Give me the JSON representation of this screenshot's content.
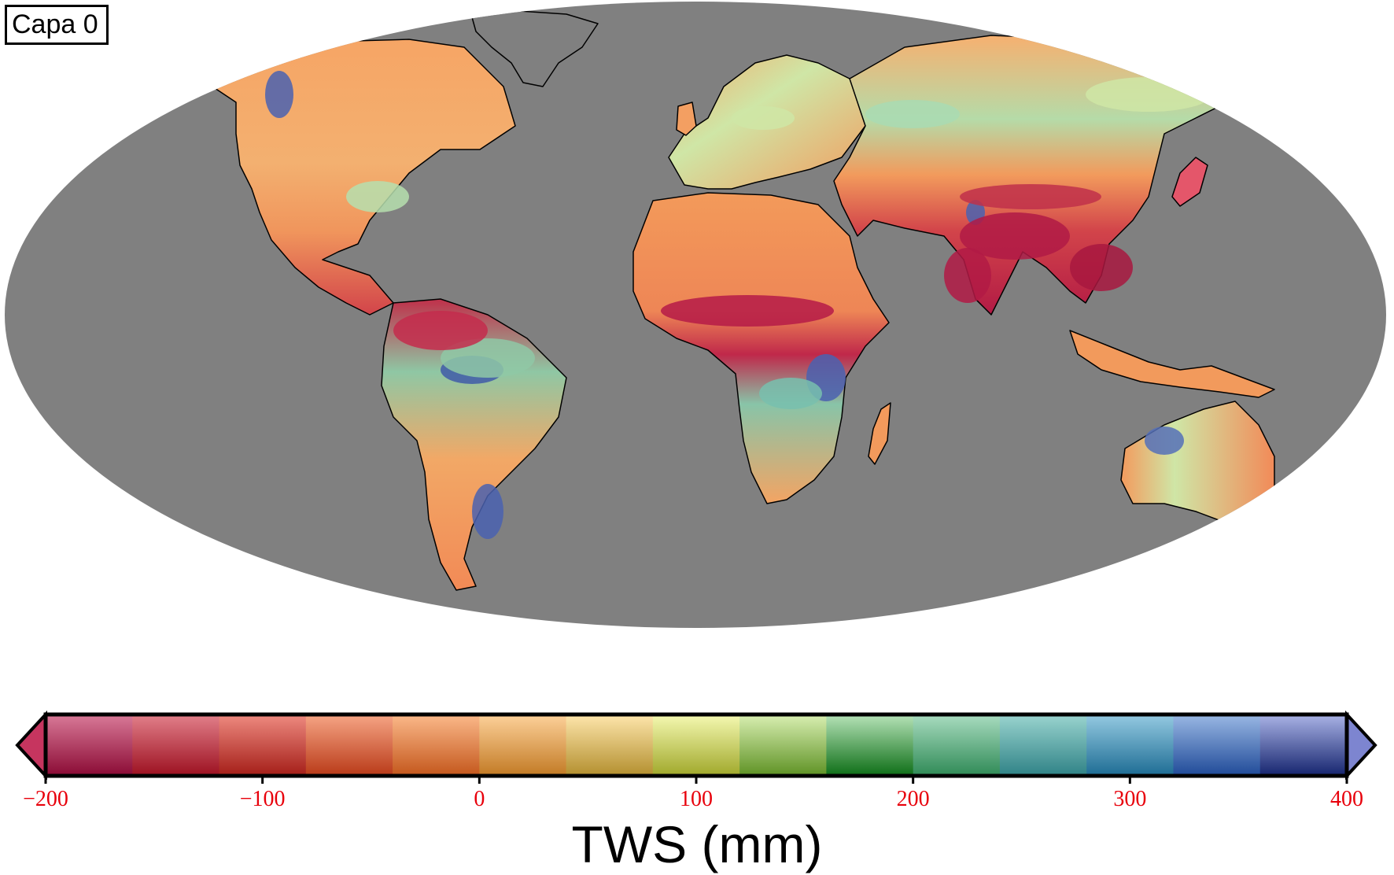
{
  "layer_label": "Capa 0",
  "colorbar": {
    "title": "TWS (mm)",
    "ticks": [
      "−200",
      "−100",
      "0",
      "100",
      "200",
      "300",
      "400"
    ],
    "tick_values": [
      -200,
      -100,
      0,
      100,
      200,
      300,
      400
    ],
    "min": -200,
    "max": 400,
    "step": 40,
    "extend": "both",
    "tick_color": "#e8000b",
    "segments": [
      {
        "from": -200,
        "to": -160,
        "color_dark": "#8a0a34",
        "color_light": "#d97a98"
      },
      {
        "from": -160,
        "to": -120,
        "color_dark": "#9c1020",
        "color_light": "#e2808a"
      },
      {
        "from": -120,
        "to": -80,
        "color_dark": "#a41e18",
        "color_light": "#ee8a80"
      },
      {
        "from": -80,
        "to": -40,
        "color_dark": "#b93a18",
        "color_light": "#f6a585"
      },
      {
        "from": -40,
        "to": 0,
        "color_dark": "#c4571c",
        "color_light": "#fbb98a"
      },
      {
        "from": 0,
        "to": 40,
        "color_dark": "#c27a24",
        "color_light": "#fdd19a"
      },
      {
        "from": 40,
        "to": 80,
        "color_dark": "#b38f2e",
        "color_light": "#fee6ac"
      },
      {
        "from": 80,
        "to": 120,
        "color_dark": "#a0a82a",
        "color_light": "#f5f9b2"
      },
      {
        "from": 120,
        "to": 160,
        "color_dark": "#5e9224",
        "color_light": "#d9efb2"
      },
      {
        "from": 160,
        "to": 200,
        "color_dark": "#0d6e16",
        "color_light": "#b6e3b8"
      },
      {
        "from": 200,
        "to": 240,
        "color_dark": "#2f8a56",
        "color_light": "#a9dcc0"
      },
      {
        "from": 240,
        "to": 280,
        "color_dark": "#2f8286",
        "color_light": "#9ad4cf"
      },
      {
        "from": 280,
        "to": 320,
        "color_dark": "#1d6c94",
        "color_light": "#95cae2"
      },
      {
        "from": 320,
        "to": 360,
        "color_dark": "#1f4a98",
        "color_light": "#9ab8e4"
      },
      {
        "from": 360,
        "to": 400,
        "color_dark": "#15246e",
        "color_light": "#aab3e6"
      }
    ]
  },
  "map": {
    "projection": "robinson",
    "ocean_color": "#808080",
    "palette": "Spectral"
  }
}
